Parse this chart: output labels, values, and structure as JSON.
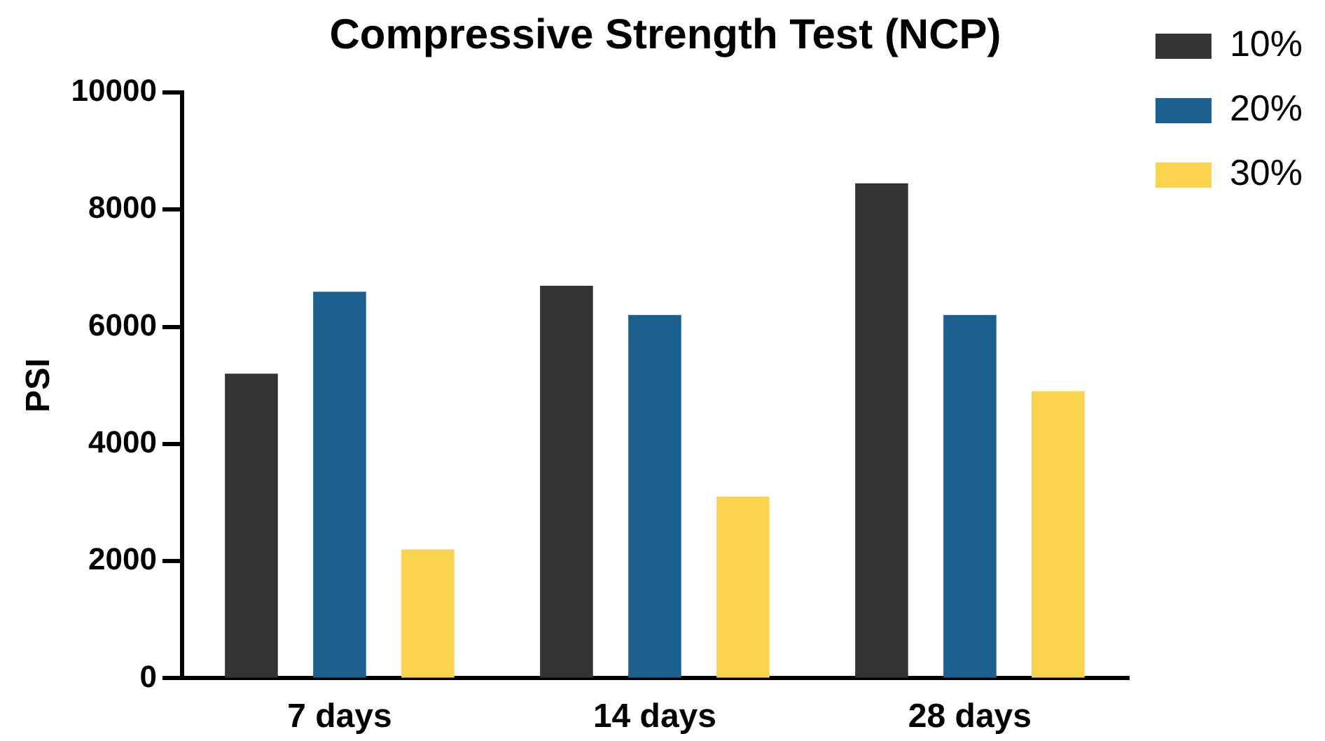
{
  "chart_data": {
    "type": "bar",
    "title": "Compressive Strength Test (NCP)",
    "ylabel": "PSI",
    "categories": [
      "7 days",
      "14 days",
      "28 days"
    ],
    "series": [
      {
        "name": "10%",
        "color": "#333333",
        "values": [
          5200,
          6700,
          8450
        ]
      },
      {
        "name": "20%",
        "color": "#1c6090",
        "values": [
          6600,
          6200,
          6200
        ]
      },
      {
        "name": "30%",
        "color": "#fcd34d",
        "values": [
          2200,
          3100,
          4900
        ]
      }
    ],
    "ylim": [
      0,
      10000
    ],
    "yticks": [
      0,
      2000,
      4000,
      6000,
      8000,
      10000
    ],
    "grid": false,
    "legend": "right"
  }
}
